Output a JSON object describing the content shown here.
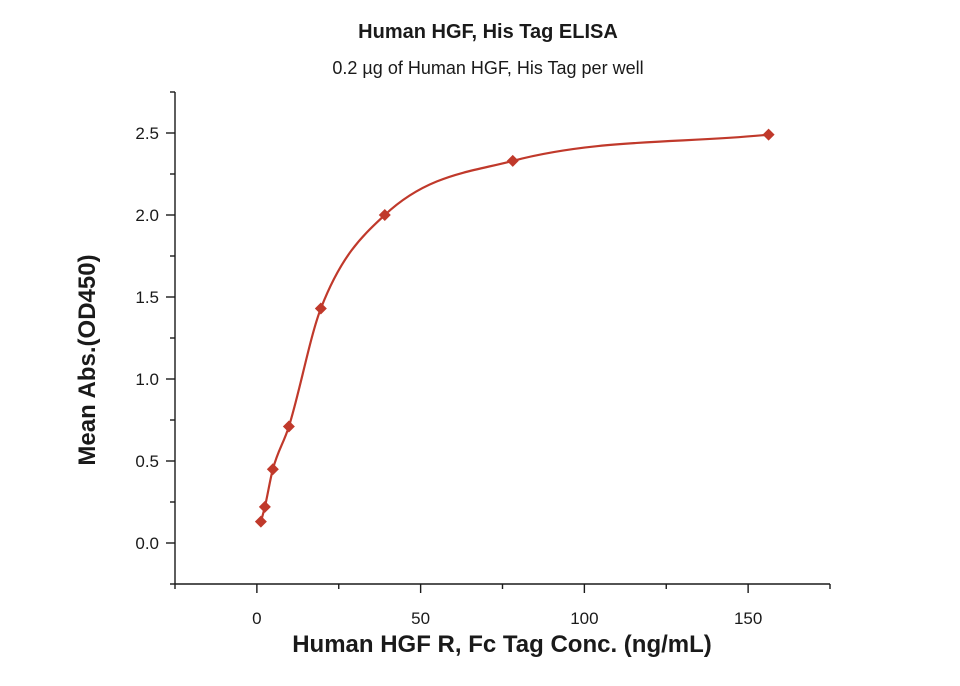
{
  "chart_data": {
    "type": "scatter",
    "title": "Human HGF, His Tag ELISA",
    "subtitle": "0.2 µg of Human HGF, His Tag per well",
    "xlabel": "Human HGF R, Fc Tag Conc. (ng/mL)",
    "ylabel": "Mean Abs.(OD450)",
    "xlim": [
      -25,
      175
    ],
    "ylim": [
      -0.25,
      2.75
    ],
    "x_ticks": [
      0,
      50,
      100,
      150
    ],
    "y_ticks": [
      0.0,
      0.5,
      1.0,
      1.5,
      2.0,
      2.5
    ],
    "x_tick_labels": [
      "0",
      "50",
      "100",
      "150"
    ],
    "y_tick_labels": [
      "0.0",
      "0.5",
      "1.0",
      "1.5",
      "2.0",
      "2.5"
    ],
    "grid": false,
    "legend": "none",
    "series": [
      {
        "color": "#c0392b",
        "marker": "diamond",
        "x": [
          1.22,
          2.44,
          4.88,
          9.77,
          19.53,
          39.06,
          78.13,
          156.25
        ],
        "y": [
          0.13,
          0.22,
          0.45,
          0.71,
          1.43,
          2.0,
          2.33,
          2.49
        ],
        "fit": "four-parameter logistic"
      }
    ]
  }
}
